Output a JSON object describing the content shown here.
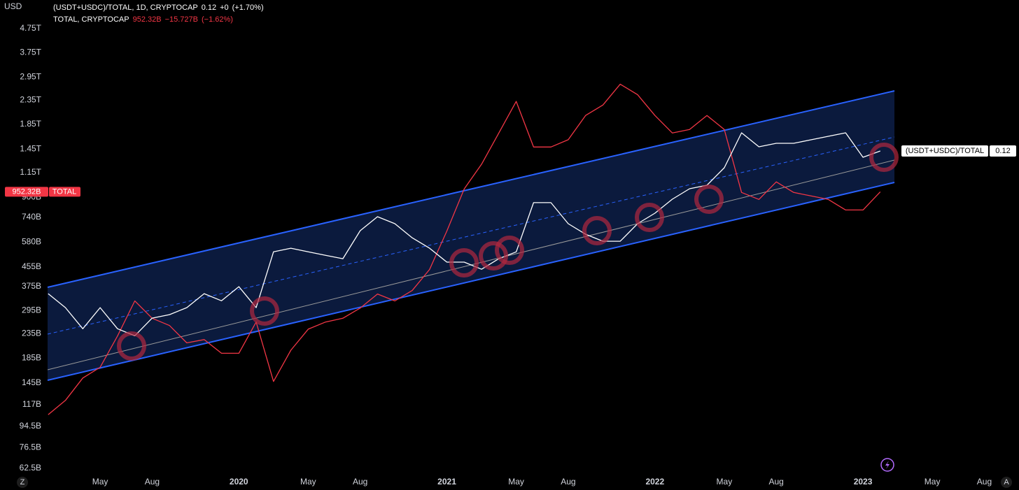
{
  "chart_data": {
    "type": "line",
    "y_label": "USD",
    "log_scale": true,
    "grid": false,
    "x": [
      "2019-02",
      "2019-03",
      "2019-04",
      "2019-05",
      "2019-06",
      "2019-07",
      "2019-08",
      "2019-09",
      "2019-10",
      "2019-11",
      "2019-12",
      "2020-01",
      "2020-02",
      "2020-03",
      "2020-04",
      "2020-05",
      "2020-06",
      "2020-07",
      "2020-08",
      "2020-09",
      "2020-10",
      "2020-11",
      "2020-12",
      "2021-01",
      "2021-02",
      "2021-03",
      "2021-04",
      "2021-05",
      "2021-06",
      "2021-07",
      "2021-08",
      "2021-09",
      "2021-10",
      "2021-11",
      "2021-12",
      "2022-01",
      "2022-02",
      "2022-03",
      "2022-04",
      "2022-05",
      "2022-06",
      "2022-07",
      "2022-08",
      "2022-09",
      "2022-10",
      "2022-11",
      "2022-12",
      "2023-01",
      "2023-02"
    ],
    "xlim": [
      "2019-01",
      "2023-10"
    ],
    "xticks": [
      {
        "value": "2019-05",
        "label": "May"
      },
      {
        "value": "2019-08",
        "label": "Aug"
      },
      {
        "value": "2020-01",
        "label": "2020"
      },
      {
        "value": "2020-05",
        "label": "May"
      },
      {
        "value": "2020-08",
        "label": "Aug"
      },
      {
        "value": "2021-01",
        "label": "2021"
      },
      {
        "value": "2021-05",
        "label": "May"
      },
      {
        "value": "2021-08",
        "label": "Aug"
      },
      {
        "value": "2022-01",
        "label": "2022"
      },
      {
        "value": "2022-05",
        "label": "May"
      },
      {
        "value": "2022-08",
        "label": "Aug"
      },
      {
        "value": "2023-01",
        "label": "2023"
      },
      {
        "value": "2023-05",
        "label": "May"
      },
      {
        "value": "2023-08",
        "label": "Aug"
      }
    ],
    "ylim": [
      58300000000.0,
      6300000000000.0
    ],
    "yticks": [
      {
        "value": 4750000000000.0,
        "label": "4.75T"
      },
      {
        "value": 3750000000000.0,
        "label": "3.75T"
      },
      {
        "value": 2950000000000.0,
        "label": "2.95T"
      },
      {
        "value": 2350000000000.0,
        "label": "2.35T"
      },
      {
        "value": 1850000000000.0,
        "label": "1.85T"
      },
      {
        "value": 1450000000000.0,
        "label": "1.45T"
      },
      {
        "value": 1150000000000.0,
        "label": "1.15T"
      },
      {
        "value": 900000000000.0,
        "label": "900B"
      },
      {
        "value": 740000000000.0,
        "label": "740B"
      },
      {
        "value": 580000000000.0,
        "label": "580B"
      },
      {
        "value": 455000000000.0,
        "label": "455B"
      },
      {
        "value": 375000000000.0,
        "label": "375B"
      },
      {
        "value": 295000000000.0,
        "label": "295B"
      },
      {
        "value": 235000000000.0,
        "label": "235B"
      },
      {
        "value": 185000000000.0,
        "label": "185B"
      },
      {
        "value": 145000000000.0,
        "label": "145B"
      },
      {
        "value": 117000000000.0,
        "label": "117B"
      },
      {
        "value": 94500000000.0,
        "label": "94.5B"
      },
      {
        "value": 76500000000.0,
        "label": "76.5B"
      },
      {
        "value": 62500000000.0,
        "label": "62.5B"
      }
    ],
    "y2lim": [
      0.0049,
      0.532
    ],
    "series": [
      {
        "name": "TOTAL",
        "legend": "TOTAL, CRYPTOCAP",
        "color": "#f23645",
        "last_label": "952.32B",
        "change": "−15.727B",
        "change_pct": "(−1.62%)",
        "values": [
          106000000000.0,
          122000000000.0,
          152000000000.0,
          169000000000.0,
          230000000000.0,
          325000000000.0,
          274000000000.0,
          255000000000.0,
          215000000000.0,
          222000000000.0,
          194000000000.0,
          194000000000.0,
          264000000000.0,
          147000000000.0,
          200000000000.0,
          246000000000.0,
          264000000000.0,
          274000000000.0,
          303000000000.0,
          348000000000.0,
          325000000000.0,
          360000000000.0,
          443000000000.0,
          647000000000.0,
          980000000000.0,
          1250000000000.0,
          1700000000000.0,
          2320000000000.0,
          1480000000000.0,
          1480000000000.0,
          1590000000000.0,
          2020000000000.0,
          2240000000000.0,
          2750000000000.0,
          2480000000000.0,
          2020000000000.0,
          1700000000000.0,
          1760000000000.0,
          2020000000000.0,
          1760000000000.0,
          946000000000.0,
          883000000000.0,
          1050000000000.0,
          946000000000.0,
          914000000000.0,
          883000000000.0,
          796000000000.0,
          796000000000.0,
          952320000000.0
        ]
      },
      {
        "name": "(USDT+USDC)/TOTAL",
        "legend": "(USDT+USDC)/TOTAL, 1D, CRYPTOCAP",
        "color": "#ffffff",
        "axis": "y2",
        "change": "+0",
        "change_pct": "(+1.70%)",
        "values": [
          0.0294,
          0.0256,
          0.0208,
          0.0256,
          0.0208,
          0.0194,
          0.0231,
          0.0239,
          0.0256,
          0.0294,
          0.0274,
          0.0315,
          0.0256,
          0.0444,
          0.046,
          0.0444,
          0.0429,
          0.0415,
          0.0547,
          0.0628,
          0.0586,
          0.051,
          0.046,
          0.0401,
          0.0401,
          0.0374,
          0.0415,
          0.0444,
          0.0721,
          0.0721,
          0.0586,
          0.0528,
          0.0493,
          0.0493,
          0.0586,
          0.065,
          0.0746,
          0.0827,
          0.0856,
          0.1017,
          0.1436,
          0.1251,
          0.1295,
          0.1295,
          0.134,
          0.1387,
          0.1436,
          0.1128,
          0.12
        ]
      }
    ],
    "controls": [
      "Z",
      "A"
    ]
  }
}
